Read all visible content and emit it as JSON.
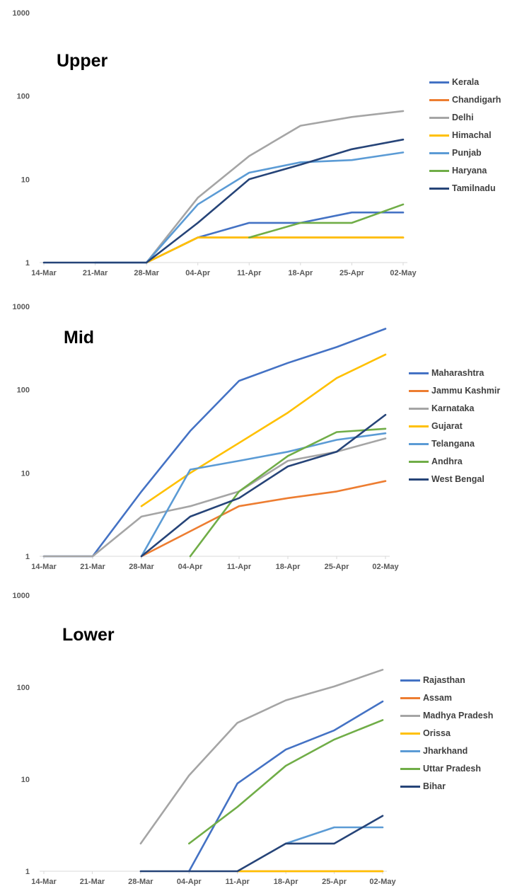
{
  "chart_data": [
    {
      "type": "line",
      "title": "Upper",
      "xlabel": "",
      "ylabel": "",
      "yscale": "log",
      "ylim": [
        1,
        1000
      ],
      "grid": false,
      "legend_position": "right",
      "x": [
        "14-Mar",
        "21-Mar",
        "28-Mar",
        "04-Apr",
        "11-Apr",
        "18-Apr",
        "25-Apr",
        "02-May"
      ],
      "y_ticks": [
        "1",
        "10",
        "100",
        "1000"
      ],
      "series": [
        {
          "name": "Kerala",
          "color": "#4472C4",
          "values": [
            null,
            null,
            1,
            2,
            3,
            3,
            4,
            4
          ]
        },
        {
          "name": "Chandigarh",
          "color": "#ED7D31",
          "values": [
            null,
            null,
            1,
            2,
            2,
            2,
            2,
            2
          ]
        },
        {
          "name": "Delhi",
          "color": "#A5A5A5",
          "values": [
            null,
            null,
            1,
            6,
            19,
            44,
            56,
            66
          ]
        },
        {
          "name": "Himachal",
          "color": "#FFC000",
          "values": [
            null,
            null,
            1,
            2,
            2,
            2,
            2,
            2
          ]
        },
        {
          "name": "Punjab",
          "color": "#5B9BD5",
          "values": [
            null,
            1,
            1,
            5,
            12,
            16,
            17,
            21
          ]
        },
        {
          "name": "Haryana",
          "color": "#70AD47",
          "values": [
            null,
            null,
            null,
            null,
            2,
            3,
            3,
            5
          ]
        },
        {
          "name": "Tamilnadu",
          "color": "#264478",
          "values": [
            1,
            1,
            1,
            3,
            10,
            15,
            23,
            30
          ]
        }
      ]
    },
    {
      "type": "line",
      "title": "Mid",
      "xlabel": "",
      "ylabel": "",
      "yscale": "log",
      "ylim": [
        1,
        1000
      ],
      "grid": false,
      "legend_position": "right",
      "x": [
        "14-Mar",
        "21-Mar",
        "28-Mar",
        "04-Apr",
        "11-Apr",
        "18-Apr",
        "25-Apr",
        "02-May"
      ],
      "y_ticks": [
        "1",
        "10",
        "100",
        "1000"
      ],
      "series": [
        {
          "name": "Maharashtra",
          "color": "#4472C4",
          "values": [
            1,
            1,
            6,
            32,
            128,
            210,
            325,
            540
          ]
        },
        {
          "name": "Jammu Kashmir",
          "color": "#ED7D31",
          "values": [
            null,
            null,
            1,
            2,
            4,
            5,
            6,
            8
          ]
        },
        {
          "name": "Karnataka",
          "color": "#A5A5A5",
          "values": [
            1,
            1,
            3,
            4,
            6,
            14,
            18,
            26
          ]
        },
        {
          "name": "Gujarat",
          "color": "#FFC000",
          "values": [
            null,
            null,
            4,
            10,
            23,
            53,
            138,
            265
          ]
        },
        {
          "name": "Telangana",
          "color": "#5B9BD5",
          "values": [
            null,
            null,
            1,
            11,
            14,
            18,
            25,
            30
          ]
        },
        {
          "name": "Andhra",
          "color": "#70AD47",
          "values": [
            null,
            null,
            null,
            1,
            6,
            16,
            31,
            34
          ]
        },
        {
          "name": "West Bengal",
          "color": "#264478",
          "values": [
            null,
            null,
            1,
            3,
            5,
            12,
            18,
            50
          ]
        }
      ]
    },
    {
      "type": "line",
      "title": "Lower",
      "xlabel": "",
      "ylabel": "",
      "yscale": "log",
      "ylim": [
        1,
        1000
      ],
      "grid": false,
      "legend_position": "right",
      "x": [
        "14-Mar",
        "21-Mar",
        "28-Mar",
        "04-Apr",
        "11-Apr",
        "18-Apr",
        "25-Apr",
        "02-May"
      ],
      "y_ticks": [
        "1",
        "10",
        "100",
        "1000"
      ],
      "series": [
        {
          "name": "Rajasthan",
          "color": "#4472C4",
          "values": [
            null,
            null,
            null,
            1,
            9,
            21,
            34,
            70
          ]
        },
        {
          "name": "Assam",
          "color": "#ED7D31",
          "values": [
            null,
            null,
            null,
            null,
            1,
            1,
            1,
            1
          ]
        },
        {
          "name": "Madhya Pradesh",
          "color": "#A5A5A5",
          "values": [
            null,
            null,
            2,
            11,
            41,
            72,
            102,
            155
          ]
        },
        {
          "name": "Orissa",
          "color": "#FFC000",
          "values": [
            null,
            null,
            null,
            null,
            1,
            1,
            1,
            1
          ]
        },
        {
          "name": "Jharkhand",
          "color": "#5B9BD5",
          "values": [
            null,
            null,
            null,
            null,
            null,
            2,
            3,
            3
          ]
        },
        {
          "name": "Uttar Pradesh",
          "color": "#70AD47",
          "values": [
            null,
            null,
            null,
            2,
            5,
            14,
            27,
            44
          ]
        },
        {
          "name": "Bihar",
          "color": "#264478",
          "values": [
            null,
            null,
            1,
            1,
            1,
            2,
            2,
            4
          ]
        }
      ]
    }
  ]
}
